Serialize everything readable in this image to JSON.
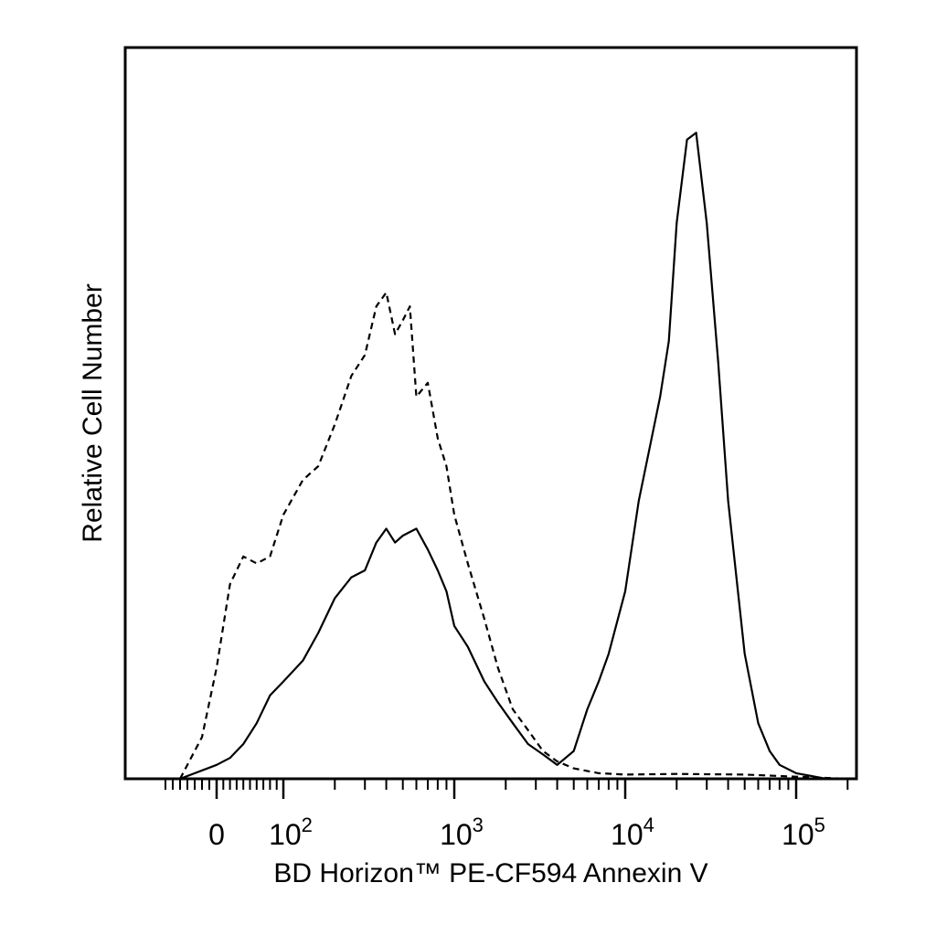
{
  "chart_data": {
    "type": "line",
    "xlabel": "BD Horizon™ PE-CF594 Annexin V",
    "ylabel": "Relative Cell Number",
    "x_scale": "biexponential (log, decades 10^2–10^5, with 0)",
    "xlim": [
      -80,
      250000
    ],
    "ylim": [
      0,
      1.0
    ],
    "grid": false,
    "legend": "none",
    "x_tick_labels": [
      {
        "base": "0",
        "exp": ""
      },
      {
        "base": "10",
        "exp": "2"
      },
      {
        "base": "10",
        "exp": "3"
      },
      {
        "base": "10",
        "exp": "4"
      },
      {
        "base": "10",
        "exp": "5"
      }
    ],
    "x_ticks_values": [
      0,
      100,
      1000,
      10000,
      100000
    ],
    "series": [
      {
        "style": "dashed",
        "x": [
          -50,
          -20,
          0,
          20,
          40,
          60,
          80,
          100,
          130,
          160,
          200,
          250,
          300,
          350,
          400,
          450,
          500,
          550,
          600,
          700,
          800,
          900,
          1000,
          1200,
          1500,
          1800,
          2200,
          2700,
          3300,
          4000,
          5000,
          7000,
          10000,
          20000,
          50000,
          100000,
          200000
        ],
        "y": [
          0.0,
          0.06,
          0.16,
          0.28,
          0.32,
          0.31,
          0.32,
          0.38,
          0.43,
          0.45,
          0.51,
          0.58,
          0.61,
          0.68,
          0.7,
          0.64,
          0.66,
          0.68,
          0.55,
          0.57,
          0.49,
          0.45,
          0.38,
          0.31,
          0.23,
          0.16,
          0.1,
          0.07,
          0.04,
          0.025,
          0.015,
          0.008,
          0.006,
          0.007,
          0.006,
          0.003,
          0.0
        ]
      },
      {
        "style": "solid",
        "x": [
          -50,
          0,
          20,
          40,
          60,
          80,
          100,
          130,
          160,
          200,
          250,
          300,
          350,
          400,
          450,
          500,
          600,
          700,
          800,
          900,
          1000,
          1200,
          1500,
          1800,
          2200,
          2700,
          3300,
          4000,
          5000,
          6000,
          7000,
          8000,
          10000,
          12000,
          14000,
          16000,
          18000,
          20000,
          23000,
          26000,
          30000,
          35000,
          40000,
          50000,
          60000,
          70000,
          80000,
          100000,
          150000
        ],
        "y": [
          0.0,
          0.02,
          0.03,
          0.05,
          0.08,
          0.12,
          0.14,
          0.17,
          0.21,
          0.26,
          0.29,
          0.3,
          0.34,
          0.36,
          0.34,
          0.35,
          0.36,
          0.33,
          0.3,
          0.27,
          0.22,
          0.19,
          0.14,
          0.11,
          0.08,
          0.05,
          0.035,
          0.02,
          0.04,
          0.1,
          0.14,
          0.18,
          0.27,
          0.4,
          0.48,
          0.55,
          0.63,
          0.8,
          0.92,
          0.93,
          0.8,
          0.6,
          0.4,
          0.18,
          0.08,
          0.04,
          0.02,
          0.008,
          0.0
        ]
      }
    ]
  }
}
